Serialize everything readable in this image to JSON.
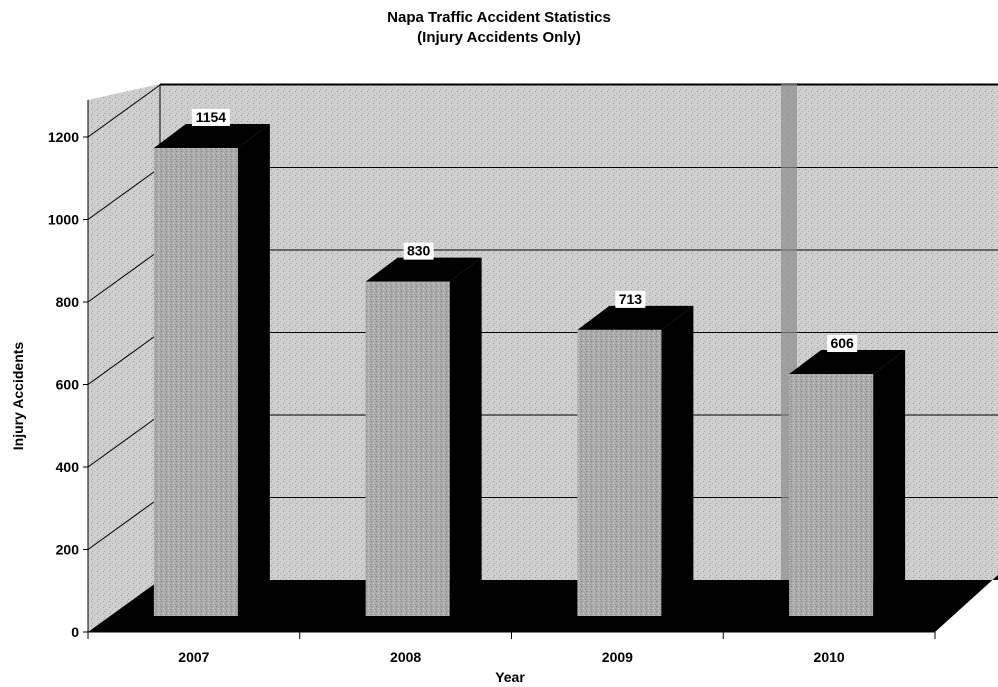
{
  "chart_data": {
    "type": "bar",
    "title": "Napa Traffic Accident Statistics",
    "subtitle": "(Injury Accidents Only)",
    "xlabel": "Year",
    "ylabel": "Injury Accidents",
    "categories": [
      "2007",
      "2008",
      "2009",
      "2010"
    ],
    "values": [
      1154,
      830,
      713,
      606
    ],
    "data_labels": [
      "1154",
      "830",
      "713",
      "606"
    ],
    "y_ticks": [
      0,
      200,
      400,
      600,
      800,
      1000,
      1200
    ],
    "ylim": [
      0,
      1300
    ],
    "grid": true,
    "legend": "none",
    "style": "3d-column",
    "colors": {
      "bar_fill": "#a9a9a9",
      "bar_side": "#000000",
      "floor": "#000000",
      "wall": "#cfcfcf",
      "grid": "#000000"
    }
  }
}
